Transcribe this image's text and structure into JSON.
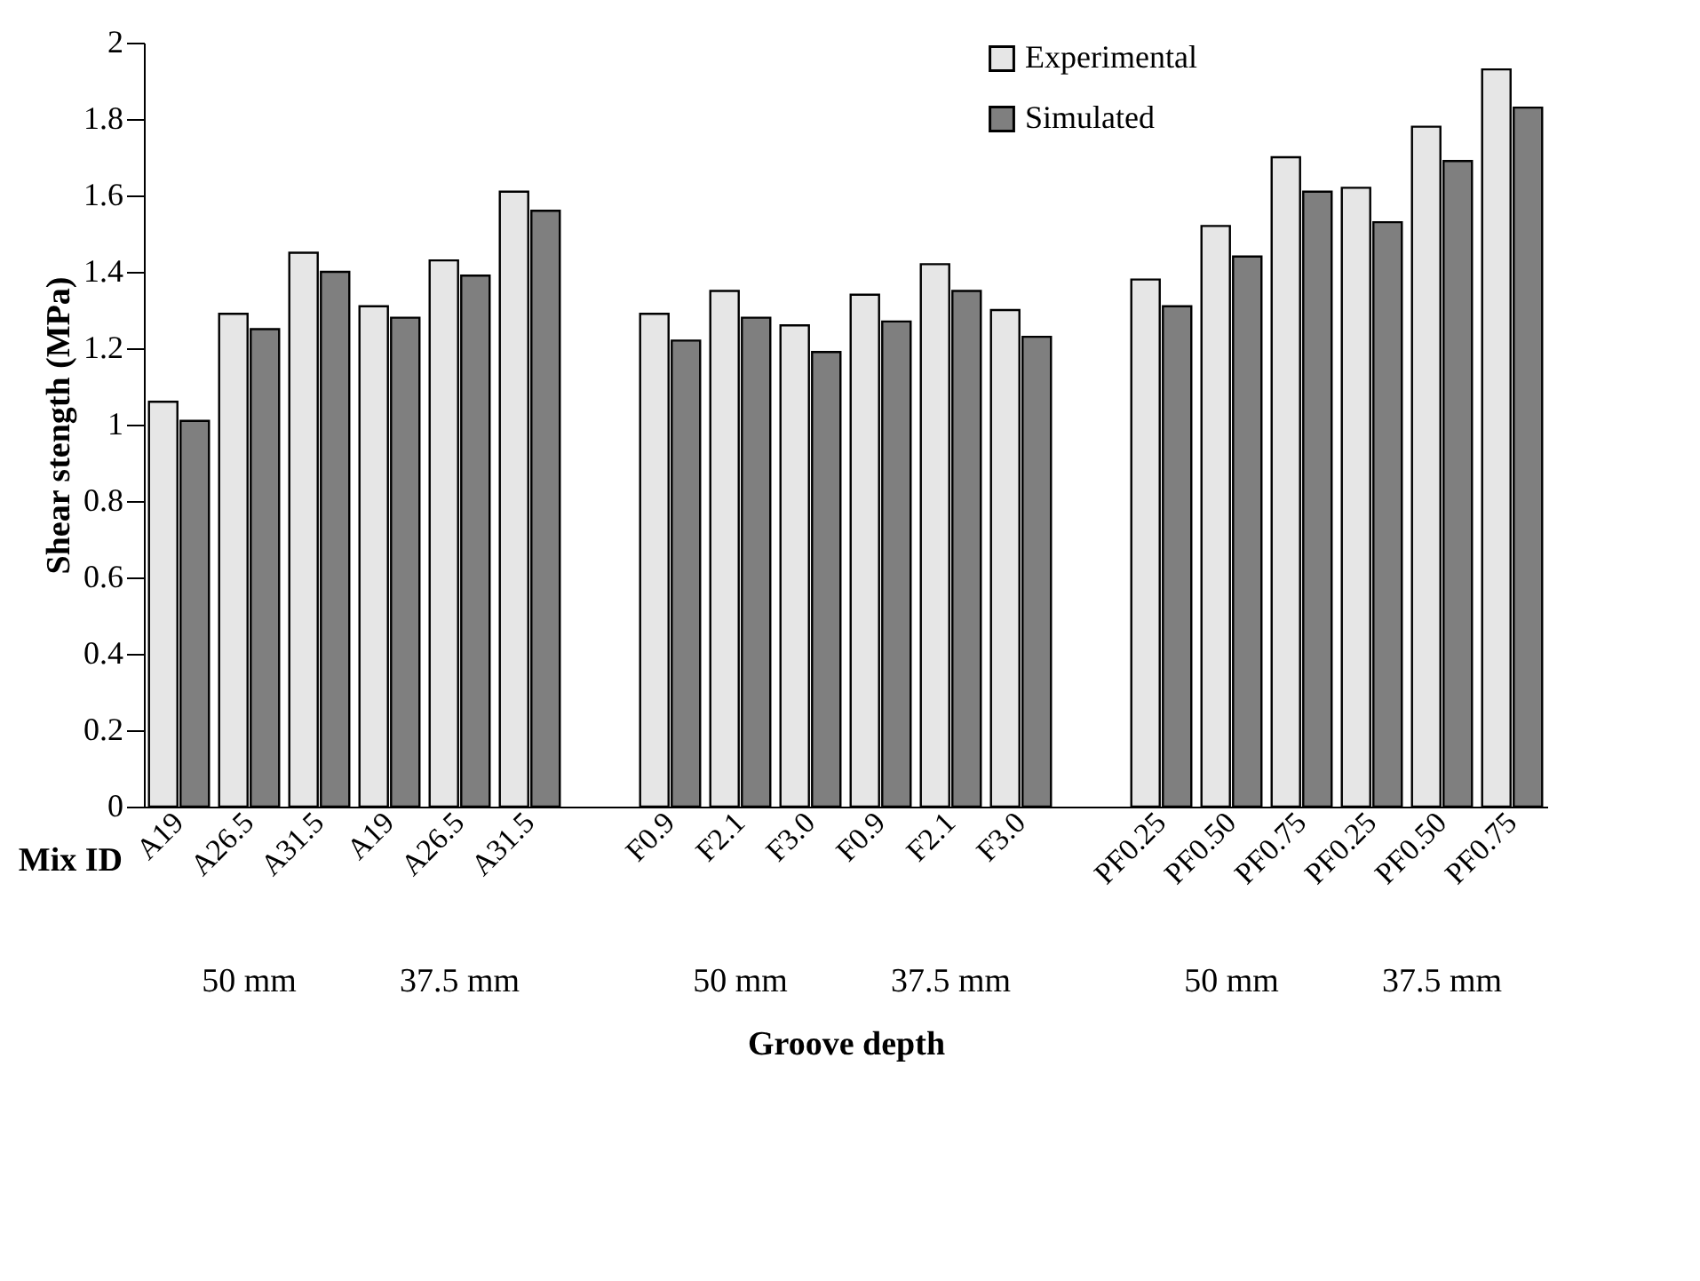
{
  "chart_data": {
    "type": "bar",
    "ylabel": "Shear stength (MPa)",
    "xlabel": "Groove depth",
    "categories": [
      "A19",
      "A26.5",
      "A31.5",
      "A19",
      "A26.5",
      "A31.5",
      null,
      "F0.9",
      "F2.1",
      "F3.0",
      "F0.9",
      "F2.1",
      "F3.0",
      null,
      "PF0.25",
      "PF0.50",
      "PF0.75",
      "PF0.25",
      "PF0.50",
      "PF0.75"
    ],
    "series": [
      {
        "name": "Experimental",
        "color": "#e6e6e6",
        "values": [
          1.06,
          1.29,
          1.45,
          1.31,
          1.43,
          1.61,
          null,
          1.29,
          1.35,
          1.26,
          1.34,
          1.42,
          1.3,
          null,
          1.38,
          1.52,
          1.7,
          1.62,
          1.78,
          1.93
        ]
      },
      {
        "name": "Simulated",
        "color": "#7f7f7f",
        "values": [
          1.01,
          1.25,
          1.4,
          1.28,
          1.39,
          1.56,
          null,
          1.22,
          1.28,
          1.19,
          1.27,
          1.35,
          1.23,
          null,
          1.31,
          1.44,
          1.61,
          1.53,
          1.69,
          1.83
        ]
      }
    ],
    "ylim": [
      0,
      2
    ],
    "yticks": [
      0,
      0.2,
      0.4,
      0.6,
      0.8,
      1,
      1.2,
      1.4,
      1.6,
      1.8,
      2
    ],
    "grid": false,
    "legend": "top right",
    "annotations": [
      "Mix ID",
      "50 mm",
      "37.5 mm",
      "50 mm",
      "37.5 mm",
      "50 mm",
      "37.5 mm"
    ]
  }
}
